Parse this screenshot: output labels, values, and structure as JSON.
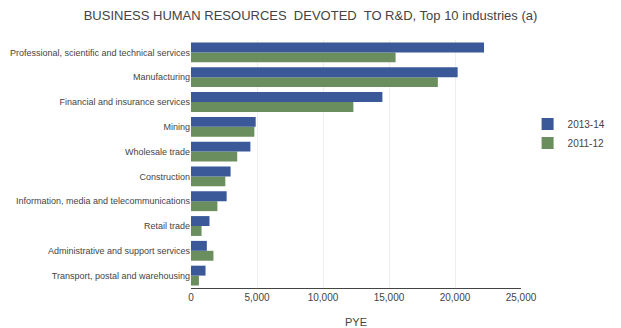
{
  "chart_data": {
    "type": "bar",
    "orientation": "horizontal",
    "title": "BUSINESS HUMAN RESOURCES  DEVOTED  TO R&D, Top 10 industries (a)",
    "categories": [
      "Transport, postal and warehousing",
      "Administrative and support services",
      "Retail trade",
      "Information, media and telecommunications",
      "Construction",
      "Wholesale trade",
      "Mining",
      "Financial and insurance services",
      "Manufacturing",
      "Professional, scientific and technical services"
    ],
    "series": [
      {
        "name": "2013-14",
        "color": "#3B5998",
        "values": [
          1100,
          1200,
          1400,
          2700,
          3000,
          4500,
          4900,
          14500,
          20200,
          22200
        ]
      },
      {
        "name": "2011-12",
        "color": "#6B8E5E",
        "values": [
          600,
          1700,
          800,
          2000,
          2600,
          3500,
          4800,
          12300,
          18700,
          15500
        ]
      }
    ],
    "xlabel": "PYE",
    "xlim": [
      0,
      25000
    ],
    "xticks": [
      0,
      {
        "value": 5000,
        "label": "5,000"
      },
      {
        "value": 10000,
        "label": "10,000"
      },
      {
        "value": 15000,
        "label": "15,000"
      },
      {
        "value": 20000,
        "label": "20,000"
      },
      {
        "value": 25000,
        "label": "25,000"
      }
    ],
    "grid": true,
    "legend": "right"
  }
}
